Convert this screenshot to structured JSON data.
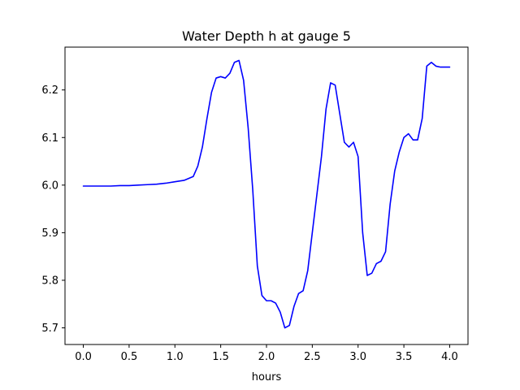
{
  "chart_data": {
    "type": "line",
    "title": "Water Depth h at gauge 5",
    "xlabel": "hours",
    "ylabel": "",
    "xlim": [
      -0.2,
      4.2
    ],
    "ylim": [
      5.665,
      6.29
    ],
    "xticks": [
      0.0,
      0.5,
      1.0,
      1.5,
      2.0,
      2.5,
      3.0,
      3.5,
      4.0
    ],
    "xtick_labels": [
      "0.0",
      "0.5",
      "1.0",
      "1.5",
      "2.0",
      "2.5",
      "3.0",
      "3.5",
      "4.0"
    ],
    "yticks": [
      5.7,
      5.8,
      5.9,
      6.0,
      6.1,
      6.2
    ],
    "ytick_labels": [
      "5.7",
      "5.8",
      "5.9",
      "6.0",
      "6.1",
      "6.2"
    ],
    "grid": false,
    "legend": "none",
    "series": [
      {
        "color": "#0000ff",
        "x": [
          0.0,
          0.1,
          0.2,
          0.3,
          0.4,
          0.5,
          0.6,
          0.7,
          0.8,
          0.9,
          1.0,
          1.1,
          1.2,
          1.25,
          1.3,
          1.35,
          1.4,
          1.45,
          1.5,
          1.55,
          1.6,
          1.65,
          1.7,
          1.75,
          1.8,
          1.85,
          1.9,
          1.95,
          2.0,
          2.05,
          2.1,
          2.15,
          2.2,
          2.25,
          2.3,
          2.35,
          2.4,
          2.45,
          2.5,
          2.55,
          2.6,
          2.65,
          2.7,
          2.75,
          2.8,
          2.85,
          2.9,
          2.95,
          3.0,
          3.05,
          3.1,
          3.15,
          3.2,
          3.25,
          3.3,
          3.35,
          3.4,
          3.45,
          3.5,
          3.55,
          3.6,
          3.65,
          3.7,
          3.75,
          3.8,
          3.85,
          3.9,
          3.95,
          4.0
        ],
        "y": [
          5.998,
          5.998,
          5.998,
          5.998,
          5.999,
          5.999,
          6.0,
          6.001,
          6.002,
          6.004,
          6.007,
          6.01,
          6.018,
          6.04,
          6.08,
          6.14,
          6.195,
          6.225,
          6.228,
          6.225,
          6.235,
          6.258,
          6.262,
          6.22,
          6.12,
          5.99,
          5.83,
          5.768,
          5.757,
          5.757,
          5.752,
          5.733,
          5.7,
          5.705,
          5.745,
          5.772,
          5.778,
          5.82,
          5.9,
          5.98,
          6.06,
          6.16,
          6.215,
          6.21,
          6.15,
          6.09,
          6.08,
          6.09,
          6.06,
          5.9,
          5.81,
          5.815,
          5.835,
          5.84,
          5.86,
          5.96,
          6.03,
          6.07,
          6.1,
          6.108,
          6.095,
          6.095,
          6.14,
          6.25,
          6.258,
          6.25,
          6.248,
          6.248,
          6.248
        ]
      }
    ]
  }
}
